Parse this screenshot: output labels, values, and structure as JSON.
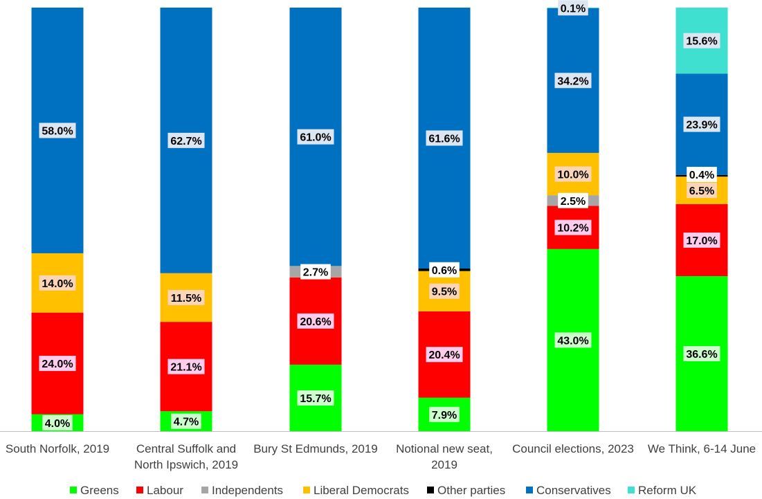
{
  "chart_data": {
    "type": "bar",
    "stacked": true,
    "categories": [
      "South Norfolk, 2019",
      "Central Suffolk and North Ipswich, 2019",
      "Bury St Edmunds, 2019",
      "Notional new seat, 2019",
      "Council elections, 2023",
      "We Think, 6-14 June"
    ],
    "category_lines": [
      [
        "South Norfolk, 2019"
      ],
      [
        "Central Suffolk and",
        "North Ipswich, 2019"
      ],
      [
        "Bury St Edmunds, 2019"
      ],
      [
        "Notional new seat,",
        "2019"
      ],
      [
        "Council elections, 2023"
      ],
      [
        "We Think, 6-14 June"
      ]
    ],
    "ylim": [
      0,
      100
    ],
    "grid": false,
    "legend_position": "bottom",
    "series": [
      {
        "name": "Greens",
        "color": "#00ff00",
        "label_bg": "#ccffcc",
        "values": [
          4.0,
          4.7,
          15.7,
          7.9,
          43.0,
          36.6
        ],
        "labels": [
          "4.0%",
          "4.7%",
          "15.7%",
          "7.9%",
          "43.0%",
          "36.6%"
        ]
      },
      {
        "name": "Labour",
        "color": "#ff0000",
        "label_bg": "#ffccee",
        "values": [
          24.0,
          21.1,
          20.6,
          20.4,
          10.2,
          17.0
        ],
        "labels": [
          "24.0%",
          "21.1%",
          "20.6%",
          "20.4%",
          "10.2%",
          "17.0%"
        ]
      },
      {
        "name": "Independents",
        "color": "#a6a6a6",
        "label_bg": "#ffffff",
        "values": [
          0,
          0,
          2.7,
          0,
          2.5,
          0
        ],
        "labels": [
          "",
          "",
          "2.7%",
          "",
          "2.5%",
          ""
        ]
      },
      {
        "name": "Liberal Democrats",
        "color": "#ffc000",
        "label_bg": "#fbd5b5",
        "values": [
          14.0,
          11.5,
          0,
          9.5,
          10.0,
          6.5
        ],
        "labels": [
          "14.0%",
          "11.5%",
          "",
          "9.5%",
          "10.0%",
          "6.5%"
        ]
      },
      {
        "name": "Other parties",
        "color": "#000000",
        "label_bg": "#ffffff",
        "values": [
          0,
          0,
          0,
          0.6,
          0,
          0.4
        ],
        "labels": [
          "",
          "",
          "",
          "0.6%",
          "",
          "0.4%"
        ]
      },
      {
        "name": "Conservatives",
        "color": "#0070c0",
        "label_bg": "#dce6f2",
        "values": [
          58.0,
          62.7,
          61.0,
          61.6,
          34.2,
          23.9
        ],
        "labels": [
          "58.0%",
          "62.7%",
          "61.0%",
          "61.6%",
          "34.2%",
          "23.9%"
        ]
      },
      {
        "name": "Reform UK",
        "color": "#40e0d0",
        "label_bg": "#dce6f2",
        "values": [
          0,
          0,
          0,
          0,
          0.1,
          15.6
        ],
        "labels": [
          "",
          "",
          "",
          "",
          "0.1%",
          "15.6%"
        ]
      }
    ]
  }
}
